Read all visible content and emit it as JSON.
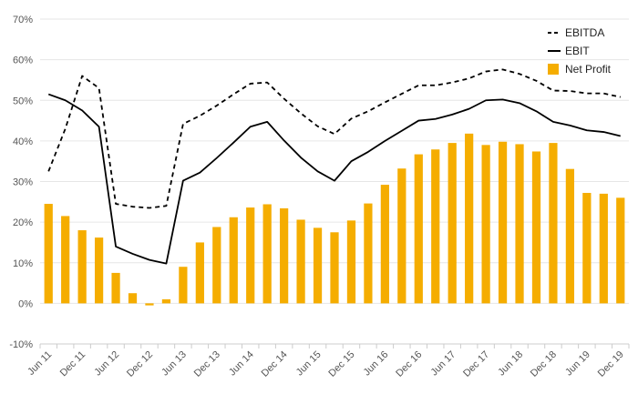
{
  "chart_data": {
    "type": "bar+line",
    "title": "",
    "xlabel": "",
    "ylabel": "",
    "ylim": [
      -10,
      70
    ],
    "y_ticks": [
      -10,
      0,
      10,
      20,
      30,
      40,
      50,
      60,
      70
    ],
    "y_tick_suffix": "%",
    "grid": true,
    "legend_position": "top-right",
    "x_tick_labels": [
      "Jun 11",
      "Dec 11",
      "Jun 12",
      "Dec 12",
      "Jun 13",
      "Dec 13",
      "Jun 14",
      "Dec 14",
      "Jun 15",
      "Dec 15",
      "Jun 16",
      "Dec 16",
      "Jun 17",
      "Dec 17",
      "Jun 18",
      "Dec 18",
      "Jun 19",
      "Dec 19"
    ],
    "categories": [
      "Jun 11",
      "Sep 11",
      "Dec 11",
      "Mar 12",
      "Jun 12",
      "Sep 12",
      "Dec 12",
      "Mar 13",
      "Jun 13",
      "Sep 13",
      "Dec 13",
      "Mar 14",
      "Jun 14",
      "Sep 14",
      "Dec 14",
      "Mar 15",
      "Jun 15",
      "Sep 15",
      "Dec 15",
      "Mar 16",
      "Jun 16",
      "Sep 16",
      "Dec 16",
      "Mar 17",
      "Jun 17",
      "Sep 17",
      "Dec 17",
      "Mar 18",
      "Jun 18",
      "Sep 18",
      "Dec 18",
      "Mar 19",
      "Jun 19",
      "Sep 19",
      "Dec 19"
    ],
    "series": [
      {
        "name": "EBITDA",
        "kind": "line",
        "style": "dashed",
        "color": "#000000",
        "values": [
          32.5,
          43,
          56,
          53,
          24.5,
          23.8,
          23.5,
          24,
          44.2,
          46.2,
          48.7,
          51.5,
          54.1,
          54.4,
          50.4,
          46.8,
          43.6,
          41.7,
          45.5,
          47.3,
          49.5,
          51.6,
          53.7,
          53.7,
          54.4,
          55.4,
          57.1,
          57.6,
          56.5,
          54.8,
          52.4,
          52.3,
          51.7,
          51.7,
          50.8
        ]
      },
      {
        "name": "EBIT",
        "kind": "line",
        "style": "solid",
        "color": "#000000",
        "values": [
          51.5,
          50,
          47.5,
          43.5,
          14,
          12.2,
          10.7,
          9.8,
          30.2,
          32.2,
          35.8,
          39.6,
          43.5,
          44.7,
          40.1,
          35.9,
          32.5,
          30.2,
          35,
          37.3,
          40,
          42.5,
          45,
          45.4,
          46.5,
          47.9,
          50,
          50.2,
          49.3,
          47.3,
          44.7,
          43.8,
          42.6,
          42.2,
          41.2
        ]
      },
      {
        "name": "Net Profit",
        "kind": "bar",
        "color": "#f5ad00",
        "values": [
          24.5,
          21.5,
          18,
          16.2,
          7.5,
          2.5,
          -0.5,
          1,
          9,
          15,
          18.8,
          21.2,
          23.6,
          24.4,
          23.4,
          20.6,
          18.6,
          17.5,
          20.4,
          24.6,
          29.2,
          33.2,
          36.7,
          37.9,
          39.5,
          41.8,
          39,
          39.8,
          39.2,
          37.4,
          39.5,
          33.1,
          27.2,
          27,
          26
        ]
      }
    ]
  },
  "colors": {
    "bar": "#f5ad00",
    "line": "#000000",
    "grid": "#e6e6e6",
    "axis": "#cccccc",
    "tick_text": "#555555"
  }
}
